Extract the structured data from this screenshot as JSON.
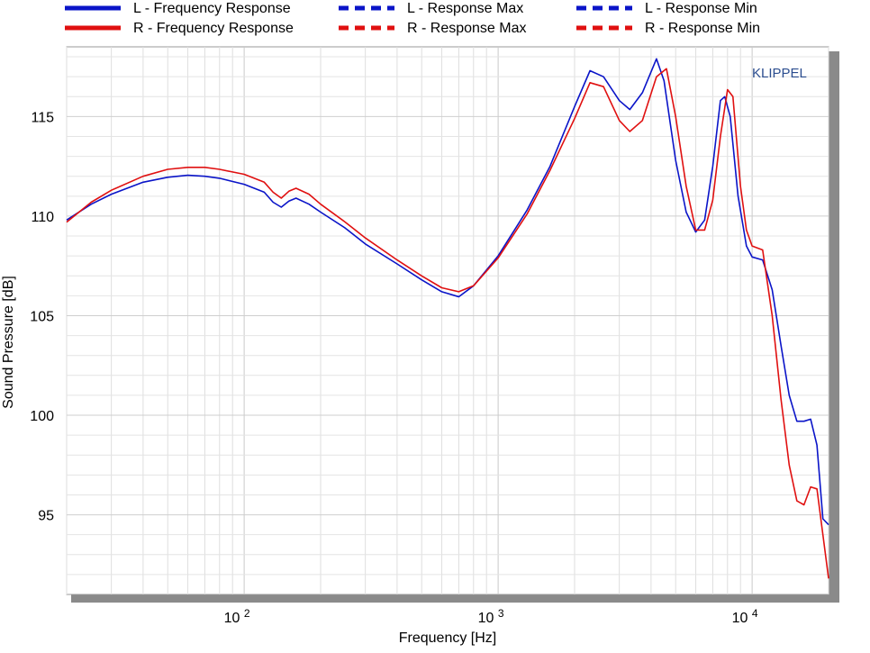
{
  "chart_data": {
    "type": "line",
    "title": "",
    "xlabel": "Frequency  [Hz]",
    "ylabel": "Sound Pressure  [dB]",
    "xscale": "log",
    "xlim": [
      20,
      20000
    ],
    "ylim": [
      91,
      118.5
    ],
    "y_ticks": [
      95,
      100,
      105,
      110,
      115
    ],
    "x_ticks": [
      {
        "value": 100,
        "base": "10",
        "exp": "2"
      },
      {
        "value": 1000,
        "base": "10",
        "exp": "3"
      },
      {
        "value": 10000,
        "base": "10",
        "exp": "4"
      }
    ],
    "grid": true,
    "watermark": {
      "text": "KLIPPEL",
      "color": "#2b4d8f"
    },
    "colors": {
      "left": "#0a14c8",
      "right": "#e01010"
    },
    "legend": [
      {
        "label": "L - Frequency Response",
        "series": "left",
        "style": "solid"
      },
      {
        "label": "L - Response Max",
        "series": "left",
        "style": "dashed"
      },
      {
        "label": "L - Response Min",
        "series": "left",
        "style": "dashed"
      },
      {
        "label": "R - Frequency Response",
        "series": "right",
        "style": "solid"
      },
      {
        "label": "R - Response Max",
        "series": "right",
        "style": "dashed"
      },
      {
        "label": "R - Response Min",
        "series": "right",
        "style": "dashed"
      }
    ],
    "series": [
      {
        "name": "L - Frequency Response",
        "color_key": "left",
        "points": [
          [
            20,
            109.8
          ],
          [
            25,
            110.6
          ],
          [
            30,
            111.1
          ],
          [
            40,
            111.7
          ],
          [
            50,
            111.95
          ],
          [
            60,
            112.05
          ],
          [
            70,
            112.0
          ],
          [
            80,
            111.9
          ],
          [
            100,
            111.6
          ],
          [
            120,
            111.2
          ],
          [
            130,
            110.7
          ],
          [
            140,
            110.45
          ],
          [
            150,
            110.75
          ],
          [
            160,
            110.9
          ],
          [
            180,
            110.6
          ],
          [
            200,
            110.2
          ],
          [
            250,
            109.4
          ],
          [
            300,
            108.6
          ],
          [
            400,
            107.6
          ],
          [
            500,
            106.8
          ],
          [
            600,
            106.2
          ],
          [
            700,
            105.95
          ],
          [
            800,
            106.5
          ],
          [
            1000,
            108.0
          ],
          [
            1300,
            110.3
          ],
          [
            1600,
            112.5
          ],
          [
            2000,
            115.5
          ],
          [
            2300,
            117.3
          ],
          [
            2600,
            117.0
          ],
          [
            3000,
            115.8
          ],
          [
            3300,
            115.35
          ],
          [
            3700,
            116.2
          ],
          [
            4200,
            117.9
          ],
          [
            4500,
            116.8
          ],
          [
            5000,
            112.8
          ],
          [
            5500,
            110.2
          ],
          [
            6000,
            109.2
          ],
          [
            6500,
            109.8
          ],
          [
            7000,
            112.5
          ],
          [
            7500,
            115.8
          ],
          [
            7800,
            116.0
          ],
          [
            8200,
            115.0
          ],
          [
            8800,
            111.0
          ],
          [
            9500,
            108.5
          ],
          [
            10000,
            107.95
          ],
          [
            11000,
            107.8
          ],
          [
            12000,
            106.3
          ],
          [
            13000,
            103.5
          ],
          [
            14000,
            101.0
          ],
          [
            15000,
            99.7
          ],
          [
            16000,
            99.7
          ],
          [
            17000,
            99.8
          ],
          [
            18000,
            98.5
          ],
          [
            19000,
            94.8
          ],
          [
            20000,
            94.5
          ]
        ]
      },
      {
        "name": "R - Frequency Response",
        "color_key": "right",
        "points": [
          [
            20,
            109.7
          ],
          [
            25,
            110.7
          ],
          [
            30,
            111.3
          ],
          [
            40,
            112.0
          ],
          [
            50,
            112.35
          ],
          [
            60,
            112.45
          ],
          [
            70,
            112.45
          ],
          [
            80,
            112.35
          ],
          [
            100,
            112.1
          ],
          [
            120,
            111.7
          ],
          [
            130,
            111.2
          ],
          [
            140,
            110.9
          ],
          [
            150,
            111.25
          ],
          [
            160,
            111.4
          ],
          [
            180,
            111.1
          ],
          [
            200,
            110.6
          ],
          [
            250,
            109.7
          ],
          [
            300,
            108.9
          ],
          [
            400,
            107.8
          ],
          [
            500,
            107.0
          ],
          [
            600,
            106.4
          ],
          [
            700,
            106.2
          ],
          [
            800,
            106.5
          ],
          [
            1000,
            107.9
          ],
          [
            1300,
            110.1
          ],
          [
            1600,
            112.3
          ],
          [
            2000,
            114.9
          ],
          [
            2300,
            116.7
          ],
          [
            2600,
            116.5
          ],
          [
            3000,
            114.8
          ],
          [
            3300,
            114.25
          ],
          [
            3700,
            114.8
          ],
          [
            4200,
            117.0
          ],
          [
            4600,
            117.4
          ],
          [
            5000,
            115.0
          ],
          [
            5500,
            111.5
          ],
          [
            6000,
            109.3
          ],
          [
            6500,
            109.3
          ],
          [
            7000,
            110.8
          ],
          [
            7500,
            114.0
          ],
          [
            8000,
            116.35
          ],
          [
            8400,
            116.0
          ],
          [
            9000,
            111.5
          ],
          [
            9500,
            109.3
          ],
          [
            10000,
            108.5
          ],
          [
            11000,
            108.3
          ],
          [
            12000,
            105.0
          ],
          [
            13000,
            100.8
          ],
          [
            14000,
            97.5
          ],
          [
            15000,
            95.7
          ],
          [
            16000,
            95.5
          ],
          [
            17000,
            96.4
          ],
          [
            18000,
            96.3
          ],
          [
            19000,
            94.0
          ],
          [
            20000,
            91.8
          ]
        ]
      }
    ]
  }
}
